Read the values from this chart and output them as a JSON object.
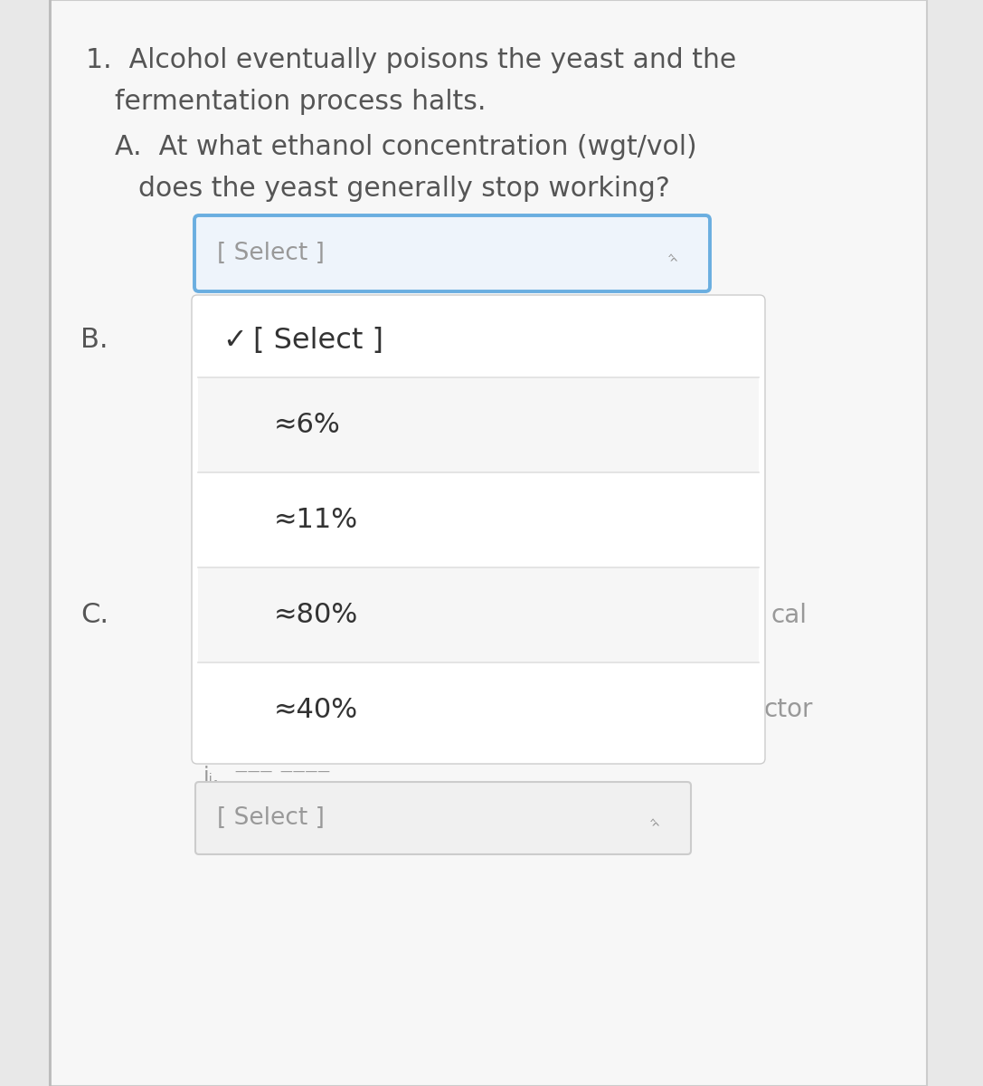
{
  "background_color": "#e8e8e8",
  "page_bg": "#f7f7f7",
  "title_text_1": "1.  Alcohol eventually poisons the yeast and the",
  "title_text_2": "fermentation process halts.",
  "question_a_1": "A.  At what ethanol concentration (wgt/vol)",
  "question_a_2": "does the yeast generally stop working?",
  "select_box_1_text": "[ Select ]",
  "label_b": "B.",
  "checkmark": "✓",
  "select_box_2_text": "[ Select ]",
  "label_c": "C.",
  "dropdown_items": [
    "≈6%",
    "≈11%",
    "≈80%",
    "≈40%"
  ],
  "select_box_3_text": "[ Select ]",
  "text_cal": "cal",
  "text_ctor": "ctor",
  "font_color_main": "#555555",
  "font_color_light": "#999999",
  "font_color_dark": "#333333",
  "dropdown_bg": "#ffffff",
  "select_bg_blue": "#eef4fb",
  "select_bg_gray": "#f0f0f0",
  "select_border_blue": "#6aaee0",
  "select_border_gray": "#cccccc",
  "dropdown_divider": "#e0e0e0",
  "page_border": "#cccccc",
  "left_bar_color": "#c0d8f0"
}
